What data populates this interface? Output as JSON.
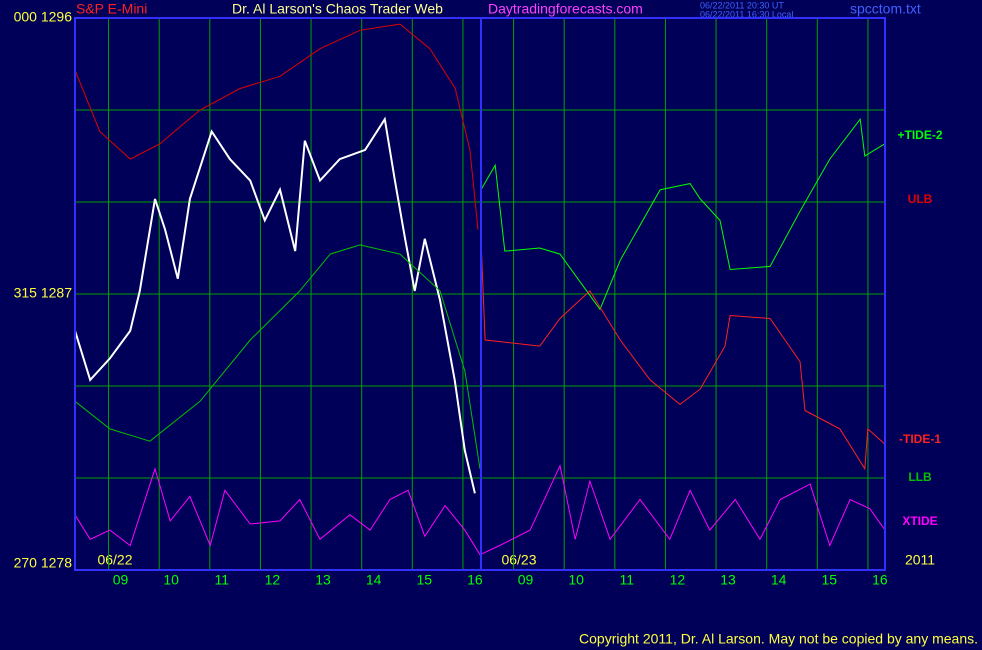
{
  "chart_data": {
    "type": "line",
    "symbol": "S&P E-Mini",
    "title": "Dr. Al Larson's Chaos Trader Web",
    "website": "Daytradingforecasts.com",
    "timestamps": [
      "06/22/2011 20:30 UT",
      "06/22/2011 16:30 Local"
    ],
    "filename": "spcctom.txt",
    "date_labels": [
      "06/22",
      "06/23",
      "2011"
    ],
    "copyright": "Copyright 2011, Dr. Al Larson. May not be copied by any means.",
    "xlim": [
      8.1,
      24.1
    ],
    "ylim": [
      1278,
      1296
    ],
    "grid": true,
    "xticks": [
      {
        "value": 9,
        "label": "09"
      },
      10,
      11,
      12,
      13,
      14,
      15,
      16,
      {
        "value": 17,
        "label": "09"
      },
      {
        "value": 18,
        "label": "10"
      },
      {
        "value": 19,
        "label": "11"
      },
      {
        "value": 20,
        "label": "12"
      },
      {
        "value": 21,
        "label": "13"
      },
      {
        "value": 22,
        "label": "14"
      },
      {
        "value": 23,
        "label": "15"
      },
      {
        "value": 24,
        "label": "16"
      }
    ],
    "yticks": [
      {
        "value": 1296,
        "label": "000 1296"
      },
      {
        "value": 1293,
        "label": null
      },
      {
        "value": 1290,
        "label": null
      },
      {
        "value": 1287,
        "label": "315 1287"
      },
      {
        "value": 1284,
        "label": null
      },
      {
        "value": 1281,
        "label": null
      },
      {
        "value": 1278,
        "label": "270 1278"
      }
    ],
    "series": [
      {
        "color": "#ffffff",
        "x": [
          8.1,
          8.4,
          8.79,
          9.19,
          9.38,
          9.68,
          9.88,
          10.13,
          10.37,
          10.8,
          11.16,
          11.56,
          11.85,
          12.15,
          12.45,
          12.64,
          12.94,
          13.33,
          13.83,
          14.22,
          14.42,
          14.62,
          14.81,
          15.01,
          15.31,
          15.6,
          15.8,
          16.0
        ],
        "values": [
          1285.8,
          1284.2,
          1284.9,
          1285.8,
          1287.1,
          1290.1,
          1289.1,
          1287.5,
          1290.1,
          1292.3,
          1291.4,
          1290.7,
          1289.4,
          1290.4,
          1288.4,
          1292.0,
          1290.7,
          1291.4,
          1291.7,
          1292.7,
          1290.7,
          1288.8,
          1287.1,
          1288.8,
          1286.8,
          1284.2,
          1281.9,
          1280.5
        ]
      },
      {
        "name": "ULB",
        "color": "#e00000",
        "x": [
          8.1,
          8.59,
          9.19,
          9.78,
          10.57,
          11.36,
          12.15,
          12.94,
          13.73,
          14.52,
          15.11,
          15.61,
          15.9,
          16.06
        ],
        "values": [
          1294.3,
          1292.3,
          1291.4,
          1291.9,
          1293.0,
          1293.7,
          1294.1,
          1295.0,
          1295.6,
          1295.8,
          1295.0,
          1293.7,
          1291.7,
          1289.1
        ]
      },
      {
        "name": "LLB",
        "color": "#00c000",
        "x": [
          8.1,
          8.79,
          9.58,
          10.57,
          11.56,
          12.54,
          13.14,
          13.73,
          14.52,
          15.31,
          15.8,
          16.1
        ],
        "values": [
          1283.5,
          1282.6,
          1282.2,
          1283.5,
          1285.5,
          1287.1,
          1288.3,
          1288.6,
          1288.3,
          1287.1,
          1284.5,
          1281.3
        ]
      },
      {
        "name": "+TIDE-2",
        "color": "#00ff00",
        "x": [
          16.12,
          16.4,
          16.59,
          17.28,
          17.68,
          18.47,
          18.87,
          19.66,
          20.25,
          20.45,
          20.84,
          21.04,
          21.83,
          22.42,
          23.01,
          23.61,
          23.7,
          24.1
        ],
        "values": [
          1290.4,
          1291.2,
          1288.4,
          1288.5,
          1288.3,
          1286.5,
          1288.1,
          1290.4,
          1290.6,
          1290.1,
          1289.4,
          1287.8,
          1287.9,
          1289.7,
          1291.4,
          1292.7,
          1291.5,
          1291.9
        ]
      },
      {
        "name": "-TIDE-1",
        "color": "#ff2020",
        "x": [
          16.12,
          16.2,
          17.28,
          17.68,
          18.27,
          18.87,
          19.46,
          20.05,
          20.45,
          20.94,
          21.04,
          21.83,
          22.42,
          22.52,
          23.21,
          23.7,
          23.76,
          24.1
        ],
        "values": [
          1288.8,
          1285.5,
          1285.3,
          1286.2,
          1287.1,
          1285.5,
          1284.2,
          1283.4,
          1283.9,
          1285.3,
          1286.3,
          1286.2,
          1284.8,
          1283.2,
          1282.6,
          1281.3,
          1282.6,
          1282.1
        ]
      },
      {
        "name": "XTIDE",
        "color": "#ff00ff",
        "x": [
          8.1,
          8.4,
          8.79,
          9.19,
          9.68,
          9.98,
          10.37,
          10.77,
          11.06,
          11.56,
          12.15,
          12.54,
          12.94,
          13.53,
          13.93,
          14.32,
          14.68,
          15.01,
          15.41,
          15.8,
          16.1,
          16.49,
          17.09,
          17.68,
          17.98,
          18.27,
          18.67,
          19.26,
          19.85,
          20.25,
          20.64,
          21.14,
          21.63,
          22.03,
          22.62,
          23.01,
          23.41,
          23.8,
          24.1
        ],
        "values": [
          1279.8,
          1279.0,
          1279.3,
          1278.8,
          1281.3,
          1279.6,
          1280.4,
          1278.8,
          1280.6,
          1279.5,
          1279.6,
          1280.3,
          1279.0,
          1279.8,
          1279.3,
          1280.3,
          1280.6,
          1279.1,
          1280.1,
          1279.3,
          1278.5,
          1278.8,
          1279.3,
          1281.4,
          1279.0,
          1280.9,
          1279.0,
          1280.3,
          1279.0,
          1280.6,
          1279.3,
          1280.3,
          1279.0,
          1280.3,
          1280.8,
          1278.8,
          1280.3,
          1280.0,
          1279.3
        ]
      }
    ]
  }
}
